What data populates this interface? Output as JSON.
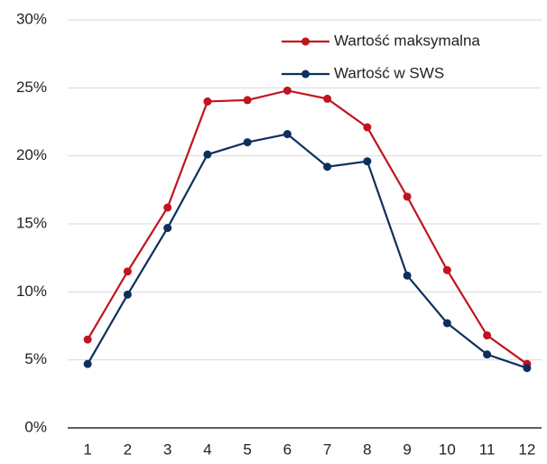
{
  "chart_data": {
    "type": "line",
    "categories": [
      "1",
      "2",
      "3",
      "4",
      "5",
      "6",
      "7",
      "8",
      "9",
      "10",
      "11",
      "12"
    ],
    "series": [
      {
        "name": "Wartość maksymalna",
        "color": "#c0141e",
        "values": [
          6.5,
          11.5,
          16.2,
          24.0,
          24.1,
          24.8,
          24.2,
          22.1,
          17.0,
          11.6,
          6.8,
          4.7
        ]
      },
      {
        "name": "Wartość w SWS",
        "color": "#0d2f5e",
        "values": [
          4.7,
          9.8,
          14.7,
          20.1,
          21.0,
          21.6,
          19.2,
          19.6,
          11.2,
          7.7,
          5.4,
          4.4
        ]
      }
    ],
    "ylim": [
      0,
      30
    ],
    "yticks": [
      {
        "value": 0,
        "label": "0%"
      },
      {
        "value": 5,
        "label": "5%"
      },
      {
        "value": 10,
        "label": "10%"
      },
      {
        "value": 15,
        "label": "15%"
      },
      {
        "value": 20,
        "label": "20%"
      },
      {
        "value": 25,
        "label": "25%"
      },
      {
        "value": 30,
        "label": "30%"
      }
    ],
    "grid": true,
    "legend": "top-right"
  }
}
